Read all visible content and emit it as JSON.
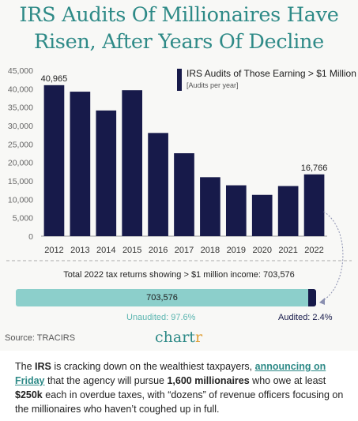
{
  "header": {
    "title_line1": "IRS Audits Of Millionaires Have",
    "title_line2": "Risen, After Years Of Decline"
  },
  "legend": {
    "title": "IRS Audits of Those Earning > $1 Million",
    "subtitle": "[Audits per year]"
  },
  "colors": {
    "accent": "#2e8a87",
    "bar": "#171a4a",
    "unaudited": "#8ccfcb",
    "unaudited_text": "#5bb5b0",
    "brand_r": "#e0a03a"
  },
  "chart_data": [
    {
      "type": "bar",
      "categories": [
        "2012",
        "2013",
        "2014",
        "2015",
        "2016",
        "2017",
        "2018",
        "2019",
        "2020",
        "2021",
        "2022"
      ],
      "values": [
        40965,
        39200,
        34100,
        39600,
        28000,
        22500,
        16000,
        13800,
        11200,
        13600,
        16766
      ],
      "data_labels": {
        "2012": "40,965",
        "2022": "16,766"
      },
      "ylim": [
        0,
        45000
      ],
      "yticks": [
        "0",
        "5,000",
        "10,000",
        "15,000",
        "20,000",
        "25,000",
        "30,000",
        "35,000",
        "40,000",
        "45,000"
      ],
      "title": "IRS Audits of Those Earning > $1 Million",
      "ylabel": "",
      "xlabel": "",
      "legend_position": "top-right",
      "grid": false
    },
    {
      "type": "bar",
      "orientation": "horizontal-stacked",
      "title": "Total 2022 tax returns showing > $1 million income: 703,576",
      "total": 703576,
      "total_label": "703,576",
      "series": [
        {
          "name": "Unaudited",
          "percent": 97.6,
          "label": "Unaudited: 97.6%"
        },
        {
          "name": "Audited",
          "percent": 2.4,
          "label": "Audited: 2.4%"
        }
      ]
    }
  ],
  "footer": {
    "source": "Source: TRACIRS",
    "brand_main": "chart",
    "brand_end": "r"
  },
  "article": {
    "t1": "The ",
    "irs": "IRS",
    "t2": " is cracking down on the wealthiest taxpayers, ",
    "link": "announcing on Friday",
    "t3": " that the agency will pursue ",
    "b1": "1,600 millionaires",
    "t4": " who owe at least ",
    "b2": "$250k",
    "t5": " each in overdue taxes, with “dozens” of revenue officers focusing on the millionaires who haven’t coughed up in full."
  }
}
